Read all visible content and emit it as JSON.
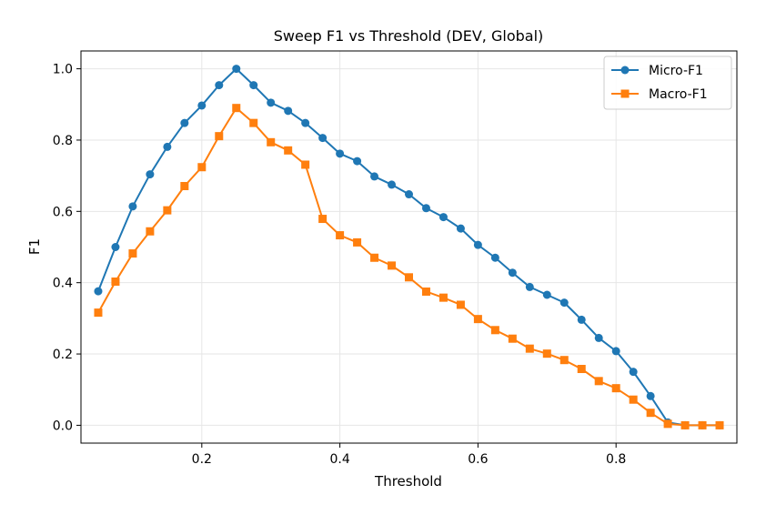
{
  "chart_data": {
    "type": "line",
    "title": "Sweep F1 vs Threshold (DEV, Global)",
    "xlabel": "Threshold",
    "ylabel": "F1",
    "xlim": [
      0.025,
      0.975
    ],
    "ylim": [
      -0.05,
      1.05
    ],
    "xticks": [
      0.2,
      0.4,
      0.6,
      0.8
    ],
    "xtick_labels": [
      "0.2",
      "0.4",
      "0.6",
      "0.8"
    ],
    "yticks": [
      0.0,
      0.2,
      0.4,
      0.6,
      0.8,
      1.0
    ],
    "ytick_labels": [
      "0.0",
      "0.2",
      "0.4",
      "0.6",
      "0.8",
      "1.0"
    ],
    "grid": true,
    "legend_position": "top-right",
    "x": [
      0.05,
      0.075,
      0.1,
      0.125,
      0.15,
      0.175,
      0.2,
      0.225,
      0.25,
      0.275,
      0.3,
      0.325,
      0.35,
      0.375,
      0.4,
      0.425,
      0.45,
      0.475,
      0.5,
      0.525,
      0.55,
      0.575,
      0.6,
      0.625,
      0.65,
      0.675,
      0.7,
      0.725,
      0.75,
      0.775,
      0.8,
      0.825,
      0.85,
      0.875,
      0.9,
      0.925,
      0.95
    ],
    "series": [
      {
        "name": "Micro-F1",
        "color": "#1f77b4",
        "marker": "circle",
        "values": [
          0.376,
          0.5,
          0.614,
          0.704,
          0.781,
          0.848,
          0.897,
          0.954,
          1.0,
          0.954,
          0.905,
          0.882,
          0.848,
          0.806,
          0.762,
          0.741,
          0.698,
          0.675,
          0.648,
          0.609,
          0.584,
          0.552,
          0.506,
          0.47,
          0.428,
          0.388,
          0.366,
          0.344,
          0.296,
          0.245,
          0.208,
          0.15,
          0.082,
          0.008,
          0.0,
          0.0,
          0.0
        ]
      },
      {
        "name": "Macro-F1",
        "color": "#ff7f0e",
        "marker": "square",
        "values": [
          0.316,
          0.403,
          0.482,
          0.544,
          0.603,
          0.671,
          0.724,
          0.811,
          0.89,
          0.848,
          0.794,
          0.771,
          0.731,
          0.579,
          0.533,
          0.513,
          0.47,
          0.448,
          0.415,
          0.375,
          0.358,
          0.338,
          0.298,
          0.267,
          0.243,
          0.215,
          0.201,
          0.183,
          0.158,
          0.124,
          0.104,
          0.072,
          0.035,
          0.004,
          0.0,
          0.0,
          0.0
        ]
      }
    ]
  }
}
